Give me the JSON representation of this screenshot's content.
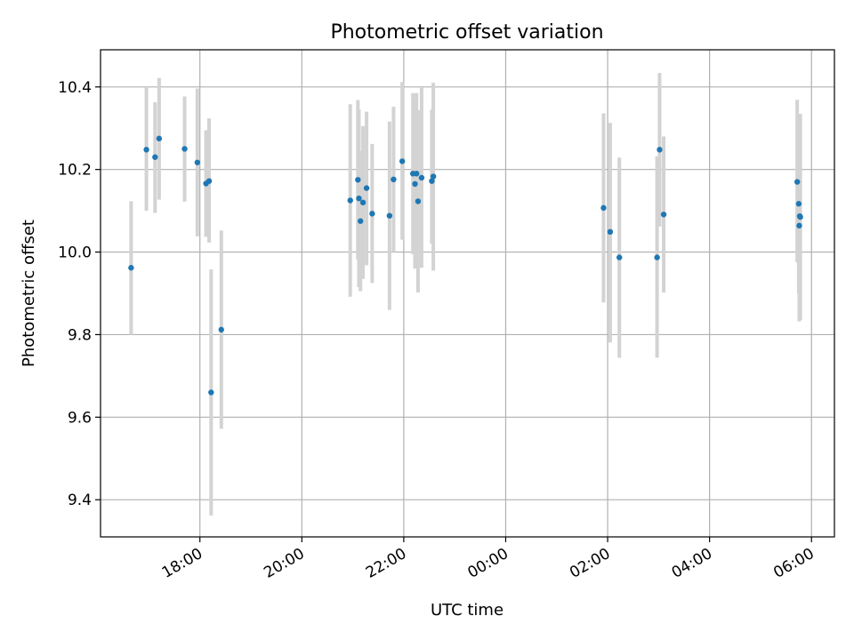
{
  "chart_data": {
    "type": "scatter",
    "title": "Photometric offset variation",
    "xlabel": "UTC time",
    "ylabel": "Photometric offset",
    "x_unit": "hours of UTC day (values past 24 are the next day)",
    "xlim": [
      16.05,
      30.45
    ],
    "ylim": [
      9.31,
      10.49
    ],
    "x_ticks": [
      {
        "value": 18,
        "label": "18:00"
      },
      {
        "value": 20,
        "label": "20:00"
      },
      {
        "value": 22,
        "label": "22:00"
      },
      {
        "value": 24,
        "label": "00:00"
      },
      {
        "value": 26,
        "label": "02:00"
      },
      {
        "value": 28,
        "label": "04:00"
      },
      {
        "value": 30,
        "label": "06:00"
      }
    ],
    "y_ticks": [
      {
        "value": 9.4,
        "label": "9.4"
      },
      {
        "value": 9.6,
        "label": "9.6"
      },
      {
        "value": 9.8,
        "label": "9.8"
      },
      {
        "value": 10.0,
        "label": "10.0"
      },
      {
        "value": 10.2,
        "label": "10.2"
      },
      {
        "value": 10.4,
        "label": "10.4"
      }
    ],
    "grid": true,
    "marker_color": "#1f77b4",
    "errorbar_color": "#d3d3d3",
    "points": [
      {
        "x": 16.65,
        "y": 9.962,
        "lo": 9.8,
        "hi": 10.123
      },
      {
        "x": 16.95,
        "y": 10.248,
        "lo": 10.1,
        "hi": 10.4
      },
      {
        "x": 17.12,
        "y": 10.23,
        "lo": 10.095,
        "hi": 10.363
      },
      {
        "x": 17.2,
        "y": 10.275,
        "lo": 10.127,
        "hi": 10.422
      },
      {
        "x": 17.7,
        "y": 10.25,
        "lo": 10.122,
        "hi": 10.377
      },
      {
        "x": 17.95,
        "y": 10.217,
        "lo": 10.038,
        "hi": 10.396
      },
      {
        "x": 18.12,
        "y": 10.166,
        "lo": 10.037,
        "hi": 10.295
      },
      {
        "x": 18.18,
        "y": 10.172,
        "lo": 10.023,
        "hi": 10.324
      },
      {
        "x": 18.22,
        "y": 9.66,
        "lo": 9.362,
        "hi": 9.958
      },
      {
        "x": 18.42,
        "y": 9.812,
        "lo": 9.572,
        "hi": 10.052
      },
      {
        "x": 20.95,
        "y": 10.125,
        "lo": 9.892,
        "hi": 10.358
      },
      {
        "x": 21.1,
        "y": 10.175,
        "lo": 9.982,
        "hi": 10.368
      },
      {
        "x": 21.12,
        "y": 10.13,
        "lo": 9.915,
        "hi": 10.345
      },
      {
        "x": 21.15,
        "y": 10.075,
        "lo": 9.905,
        "hi": 10.245
      },
      {
        "x": 21.2,
        "y": 10.12,
        "lo": 9.935,
        "hi": 10.305
      },
      {
        "x": 21.27,
        "y": 10.155,
        "lo": 9.968,
        "hi": 10.34
      },
      {
        "x": 21.38,
        "y": 10.093,
        "lo": 9.925,
        "hi": 10.262
      },
      {
        "x": 21.72,
        "y": 10.088,
        "lo": 9.86,
        "hi": 10.316
      },
      {
        "x": 21.8,
        "y": 10.176,
        "lo": 10.0,
        "hi": 10.352
      },
      {
        "x": 21.97,
        "y": 10.22,
        "lo": 10.03,
        "hi": 10.412
      },
      {
        "x": 22.18,
        "y": 10.19,
        "lo": 9.995,
        "hi": 10.385
      },
      {
        "x": 22.22,
        "y": 10.165,
        "lo": 9.96,
        "hi": 10.37
      },
      {
        "x": 22.25,
        "y": 10.19,
        "lo": 9.995,
        "hi": 10.385
      },
      {
        "x": 22.28,
        "y": 10.123,
        "lo": 9.902,
        "hi": 10.344
      },
      {
        "x": 22.35,
        "y": 10.18,
        "lo": 9.962,
        "hi": 10.398
      },
      {
        "x": 22.55,
        "y": 10.172,
        "lo": 10.02,
        "hi": 10.345
      },
      {
        "x": 22.58,
        "y": 10.183,
        "lo": 9.955,
        "hi": 10.41
      },
      {
        "x": 25.92,
        "y": 10.107,
        "lo": 9.878,
        "hi": 10.336
      },
      {
        "x": 26.05,
        "y": 10.049,
        "lo": 9.781,
        "hi": 10.313
      },
      {
        "x": 26.23,
        "y": 9.987,
        "lo": 9.744,
        "hi": 10.229
      },
      {
        "x": 26.97,
        "y": 9.987,
        "lo": 9.744,
        "hi": 10.232
      },
      {
        "x": 27.02,
        "y": 10.248,
        "lo": 10.062,
        "hi": 10.434
      },
      {
        "x": 27.1,
        "y": 10.091,
        "lo": 9.902,
        "hi": 10.28
      },
      {
        "x": 29.72,
        "y": 10.17,
        "lo": 9.975,
        "hi": 10.369
      },
      {
        "x": 29.75,
        "y": 10.117,
        "lo": 9.9,
        "hi": 10.335
      },
      {
        "x": 29.77,
        "y": 10.087,
        "lo": 9.84,
        "hi": 10.334
      },
      {
        "x": 29.78,
        "y": 10.085,
        "lo": 9.835,
        "hi": 10.335
      },
      {
        "x": 29.76,
        "y": 10.064,
        "lo": 9.832,
        "hi": 10.295
      }
    ]
  }
}
